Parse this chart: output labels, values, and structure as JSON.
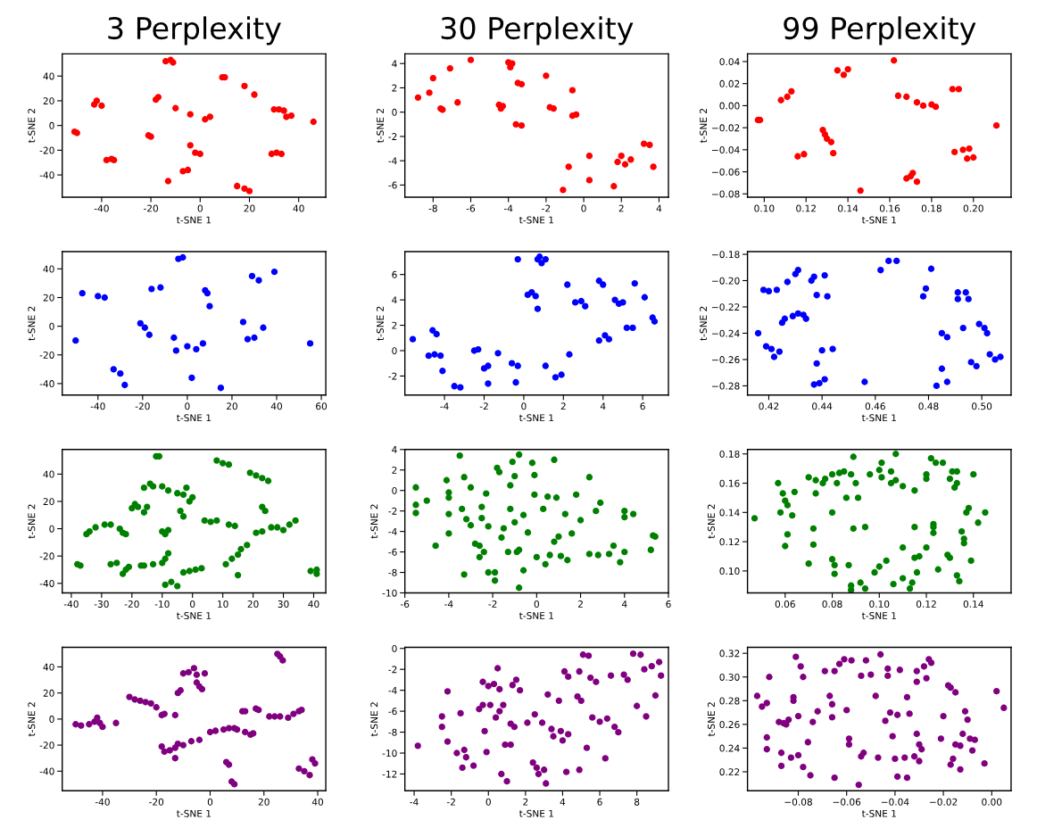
{
  "chart_data": [
    {
      "type": "scatter",
      "title": "3 Perplexity",
      "xlabel": "t-SNE 1",
      "ylabel": "t-SNE 2",
      "marker": "circle",
      "grid": false,
      "xlim": [
        -56,
        51
      ],
      "ylim": [
        -58,
        58
      ],
      "xticks": [
        -40,
        -20,
        0,
        20,
        40
      ],
      "yticks": [
        -40,
        -20,
        0,
        20,
        40
      ],
      "series": [
        {
          "color": "#ff0000",
          "x": [
            -51,
            -50,
            -43,
            -42,
            -40,
            -38,
            -36,
            -35,
            -21,
            -20,
            -18,
            -17,
            -14,
            -12,
            -11,
            -13,
            -10,
            -7,
            -5,
            -4,
            -4,
            -2,
            0,
            2,
            4,
            9,
            10,
            15,
            18,
            20,
            18,
            22,
            29,
            31,
            33,
            30,
            32,
            34,
            35,
            37,
            46
          ],
          "values": [
            -5,
            -6,
            17,
            20,
            16,
            -28,
            -27,
            -28,
            -8,
            -9,
            21,
            23,
            52,
            53,
            51,
            -45,
            14,
            -37,
            -36,
            -16,
            9,
            -22,
            -23,
            5,
            7,
            39,
            39,
            -49,
            -51,
            -53,
            32,
            25,
            -23,
            -22,
            -23,
            13,
            13,
            12,
            7,
            8,
            3
          ]
        }
      ]
    },
    {
      "type": "scatter",
      "title": "30 Perplexity",
      "xlabel": "t-SNE 1",
      "ylabel": "t-SNE 2",
      "marker": "circle",
      "grid": false,
      "xlim": [
        -9.5,
        4.5
      ],
      "ylim": [
        -7,
        4.8
      ],
      "xticks": [
        -8,
        -6,
        -4,
        -2,
        0,
        2,
        4
      ],
      "yticks": [
        -6,
        -4,
        -2,
        0,
        2,
        4
      ],
      "series": [
        {
          "color": "#ff0000",
          "x": [
            -8.8,
            -8.2,
            -8,
            -7.6,
            -7.5,
            -7.1,
            -6.7,
            -6,
            -4.5,
            -4.3,
            -4.4,
            -4,
            -3.8,
            -3.9,
            -3.5,
            -3.3,
            -3.6,
            -3.3,
            -2,
            -1.8,
            -1.6,
            -0.8,
            -0.6,
            -0.6,
            -0.4,
            -1.1,
            0.3,
            0.3,
            1.6,
            1.8,
            2,
            2.2,
            2.5,
            3.2,
            3.5,
            3.7
          ],
          "values": [
            1.2,
            1.6,
            2.8,
            0.3,
            0.2,
            3.6,
            0.8,
            4.3,
            0.6,
            0.5,
            0.3,
            4.1,
            4,
            3.7,
            2.4,
            2.3,
            -1,
            -1.1,
            3,
            0.4,
            0.3,
            -4.5,
            1.8,
            -0.3,
            -0.2,
            -6.4,
            -3.6,
            -5.6,
            -6.1,
            -4.1,
            -3.6,
            -4.3,
            -3.9,
            -2.6,
            -2.7,
            -4.5
          ]
        }
      ]
    },
    {
      "type": "scatter",
      "title": "99 Perplexity",
      "xlabel": "t-SNE 1",
      "ylabel": "t-SNE 2",
      "marker": "circle",
      "grid": false,
      "xlim": [
        0.092,
        0.218
      ],
      "ylim": [
        -0.083,
        0.047
      ],
      "xticks": [
        {
          "value": 0.1,
          "label": "0.10"
        },
        {
          "value": 0.12,
          "label": "0.12"
        },
        {
          "value": 0.14,
          "label": "0.14"
        },
        {
          "value": 0.16,
          "label": "0.16"
        },
        {
          "value": 0.18,
          "label": "0.18"
        },
        {
          "value": 0.2,
          "label": "0.20"
        }
      ],
      "yticks": [
        {
          "value": -0.08,
          "label": "−0.08"
        },
        {
          "value": -0.06,
          "label": "−0.06"
        },
        {
          "value": -0.04,
          "label": "−0.04"
        },
        {
          "value": -0.02,
          "label": "−0.02"
        },
        {
          "value": 0,
          "label": "0.00"
        },
        {
          "value": 0.02,
          "label": "0.02"
        },
        {
          "value": 0.04,
          "label": "0.04"
        }
      ],
      "series": [
        {
          "color": "#ff0000",
          "x": [
            0.097,
            0.098,
            0.108,
            0.111,
            0.113,
            0.116,
            0.119,
            0.128,
            0.129,
            0.13,
            0.132,
            0.133,
            0.135,
            0.138,
            0.14,
            0.146,
            0.162,
            0.164,
            0.168,
            0.17,
            0.168,
            0.171,
            0.173,
            0.173,
            0.176,
            0.18,
            0.182,
            0.19,
            0.193,
            0.191,
            0.195,
            0.198,
            0.197,
            0.2,
            0.211
          ],
          "values": [
            -0.013,
            -0.013,
            0.005,
            0.008,
            0.013,
            -0.046,
            -0.044,
            -0.022,
            -0.026,
            -0.03,
            -0.033,
            -0.043,
            0.032,
            0.028,
            0.033,
            -0.077,
            0.041,
            0.009,
            0.008,
            -0.064,
            -0.066,
            -0.061,
            0.003,
            -0.069,
            0.0,
            0.001,
            -0.001,
            0.015,
            0.015,
            -0.042,
            -0.04,
            -0.039,
            -0.048,
            -0.047,
            -0.018
          ]
        }
      ]
    },
    {
      "type": "scatter",
      "xlabel": "t-SNE 1",
      "ylabel": "t-SNE 2",
      "marker": "circle",
      "grid": false,
      "xlim": [
        -56,
        62
      ],
      "ylim": [
        -48,
        52
      ],
      "xticks": [
        -40,
        -20,
        0,
        20,
        40,
        60
      ],
      "yticks": [
        -40,
        -20,
        0,
        20,
        40
      ],
      "series": [
        {
          "color": "#0000ff",
          "x": [
            -50,
            -47,
            -40,
            -37,
            -33,
            -30,
            -28,
            -21,
            -19,
            -17,
            -16,
            -12,
            -6,
            -5,
            -4,
            -2,
            0,
            2,
            4,
            7,
            8,
            9,
            10,
            15,
            25,
            27,
            29,
            30,
            32,
            34,
            39,
            55
          ],
          "values": [
            -10,
            23,
            21,
            20,
            -30,
            -33,
            -41,
            2,
            -1,
            -6,
            26,
            27,
            -8,
            -17,
            47,
            48,
            -14,
            -36,
            -16,
            -12,
            25,
            23,
            14,
            -43,
            3,
            -9,
            35,
            -8,
            32,
            -1,
            38,
            -12
          ]
        }
      ]
    },
    {
      "type": "scatter",
      "xlabel": "t-SNE 1",
      "ylabel": "t-SNE 2",
      "marker": "circle",
      "grid": false,
      "xlim": [
        -6,
        7.3
      ],
      "ylim": [
        -3.5,
        7.8
      ],
      "xticks": [
        -4,
        -2,
        0,
        2,
        4,
        6
      ],
      "yticks": [
        -2,
        0,
        2,
        4,
        6
      ],
      "series": [
        {
          "color": "#0000ff",
          "x": [
            -5.6,
            -4.8,
            -4.6,
            -4.4,
            -4.5,
            -4.2,
            -4.1,
            -3.5,
            -3.2,
            -2.5,
            -2.3,
            -2,
            -1.8,
            -1.8,
            -1.3,
            -0.6,
            -0.4,
            -0.3,
            -0.3,
            0.2,
            0.4,
            0.6,
            0.7,
            0.8,
            0.9,
            1.1,
            0.7,
            1.1,
            1.6,
            1.9,
            2.2,
            2.3,
            2.6,
            2.9,
            3.1,
            3.8,
            3.8,
            4.0,
            4.1,
            4.3,
            4.6,
            4.8,
            5.0,
            5.2,
            5.5,
            5.6,
            6.1,
            6.5,
            6.6
          ],
          "values": [
            0.9,
            -0.4,
            1.6,
            1.3,
            -0.3,
            -0.4,
            -1.6,
            -2.8,
            -2.9,
            0,
            0.1,
            -1.4,
            -1.2,
            -2.6,
            -0.2,
            -1,
            -2.5,
            -1.2,
            7.2,
            4.4,
            4.6,
            4.3,
            7.2,
            7.4,
            6.9,
            7.2,
            3.3,
            -1.2,
            -2.1,
            -1.9,
            5.2,
            -0.3,
            3.8,
            3.9,
            3.5,
            5.5,
            0.8,
            5.2,
            1.2,
            0.9,
            4.0,
            3.7,
            3.8,
            1.8,
            1.8,
            5.3,
            4.2,
            2.6,
            2.3
          ]
        }
      ]
    },
    {
      "type": "scatter",
      "xlabel": "t-SNE 1",
      "ylabel": "t-SNE 2",
      "marker": "circle",
      "grid": false,
      "xlim": [
        0.412,
        0.511
      ],
      "ylim": [
        -0.287,
        -0.178
      ],
      "xticks": [
        {
          "value": 0.42,
          "label": "0.42"
        },
        {
          "value": 0.44,
          "label": "0.44"
        },
        {
          "value": 0.46,
          "label": "0.46"
        },
        {
          "value": 0.48,
          "label": "0.48"
        },
        {
          "value": 0.5,
          "label": "0.50"
        }
      ],
      "yticks": [
        {
          "value": -0.28,
          "label": "−0.28"
        },
        {
          "value": -0.26,
          "label": "−0.26"
        },
        {
          "value": -0.24,
          "label": "−0.24"
        },
        {
          "value": -0.22,
          "label": "−0.22"
        },
        {
          "value": -0.2,
          "label": "−0.20"
        },
        {
          "value": -0.18,
          "label": "−0.18"
        }
      ],
      "series": [
        {
          "color": "#0000ff",
          "x": [
            0.416,
            0.418,
            0.42,
            0.419,
            0.421,
            0.422,
            0.423,
            0.424,
            0.425,
            0.426,
            0.427,
            0.429,
            0.431,
            0.43,
            0.431,
            0.433,
            0.434,
            0.436,
            0.437,
            0.438,
            0.438,
            0.437,
            0.439,
            0.44,
            0.441,
            0.441,
            0.442,
            0.444,
            0.456,
            0.462,
            0.465,
            0.468,
            0.478,
            0.479,
            0.481,
            0.483,
            0.485,
            0.485,
            0.487,
            0.487,
            0.491,
            0.491,
            0.493,
            0.494,
            0.495,
            0.496,
            0.498,
            0.499,
            0.501,
            0.502,
            0.503,
            0.505,
            0.507
          ],
          "values": [
            -0.24,
            -0.207,
            -0.208,
            -0.25,
            -0.252,
            -0.258,
            -0.207,
            -0.254,
            -0.232,
            -0.229,
            -0.201,
            -0.227,
            -0.225,
            -0.195,
            -0.192,
            -0.226,
            -0.229,
            -0.2,
            -0.197,
            -0.211,
            -0.263,
            -0.279,
            -0.278,
            -0.253,
            -0.196,
            -0.275,
            -0.212,
            -0.252,
            -0.277,
            -0.192,
            -0.185,
            -0.185,
            -0.212,
            -0.206,
            -0.191,
            -0.28,
            -0.267,
            -0.24,
            -0.243,
            -0.277,
            -0.209,
            -0.214,
            -0.236,
            -0.209,
            -0.214,
            -0.262,
            -0.265,
            -0.233,
            -0.236,
            -0.24,
            -0.256,
            -0.26,
            -0.258
          ]
        }
      ]
    },
    {
      "type": "scatter",
      "xlabel": "t-SNE 1",
      "ylabel": "t-SNE 2",
      "marker": "circle",
      "grid": false,
      "xlim": [
        -43,
        44
      ],
      "ylim": [
        -47,
        58
      ],
      "xticks": [
        -40,
        -30,
        -20,
        -10,
        0,
        10,
        20,
        30,
        40
      ],
      "yticks": [
        -40,
        -20,
        0,
        20,
        40
      ],
      "series": [
        {
          "color": "#008000",
          "x": [
            -38,
            -37,
            -35,
            -34,
            -32,
            -29,
            -27,
            -27,
            -25,
            -24,
            -23,
            -22,
            -23,
            -22,
            -21,
            -20,
            -19,
            -18,
            -17,
            -16,
            -16,
            -16,
            -15,
            -14,
            -13,
            -13,
            -12,
            -11,
            -10,
            -9,
            -8,
            -10,
            -9,
            -8,
            -10,
            -8,
            -9,
            -7,
            -5,
            -5,
            -3,
            -4,
            -3,
            -2,
            -1,
            0,
            -3,
            -1,
            1,
            3,
            4,
            6,
            8,
            8,
            10,
            12,
            12,
            14,
            11,
            13,
            15,
            16,
            18,
            15,
            19,
            21,
            23,
            25,
            21,
            23,
            23,
            24,
            26,
            28,
            30,
            32,
            34,
            39,
            41,
            41
          ],
          "values": [
            -26,
            -27,
            -4,
            -2,
            1,
            3,
            3,
            -26,
            -25,
            0,
            -3,
            -4,
            -33,
            -30,
            -28,
            15,
            18,
            16,
            -27,
            -27,
            30,
            12,
            16,
            33,
            -26,
            31,
            53,
            53,
            -2,
            -4,
            -1,
            -25,
            -22,
            -18,
            31,
            28,
            -41,
            -39,
            -42,
            26,
            25,
            13,
            9,
            30,
            20,
            23,
            -32,
            -31,
            -30,
            -29,
            6,
            5,
            6,
            50,
            48,
            47,
            3,
            2,
            -26,
            -22,
            -19,
            -15,
            -12,
            -34,
            41,
            39,
            37,
            35,
            -3,
            -2,
            16,
            13,
            1,
            1,
            -1,
            3,
            6,
            -31,
            -30,
            -33
          ]
        }
      ]
    },
    {
      "type": "scatter",
      "xlabel": "t-SNE 1",
      "ylabel": "t-SNE 2",
      "marker": "circle",
      "grid": false,
      "xlim": [
        -6,
        6
      ],
      "ylim": [
        -10,
        4
      ],
      "xticks": [
        -6,
        -4,
        -2,
        0,
        2,
        4,
        6
      ],
      "yticks": [
        -10,
        -8,
        -6,
        -4,
        -2,
        0,
        2,
        4
      ],
      "series": [
        {
          "color": "#008000",
          "x": [
            -5.5,
            -5.5,
            -5.5,
            -5,
            -4.6,
            -4.1,
            -4,
            -4,
            -4,
            -4,
            -3.5,
            -3.4,
            -3.3,
            -3.2,
            -3.3,
            -3,
            -3,
            -2.8,
            -2.6,
            -2.6,
            -2.5,
            -2.5,
            -2.4,
            -2.3,
            -2.2,
            -2.2,
            -1.9,
            -1.9,
            -1.8,
            -1.7,
            -1.6,
            -1.5,
            -1.3,
            -1.2,
            -1.2,
            -1.1,
            -1,
            -1,
            -0.9,
            -0.8,
            -0.8,
            -0.8,
            -0.6,
            -0.6,
            -0.4,
            -0.2,
            -0.1,
            -0.1,
            0,
            0.3,
            0.4,
            0.5,
            0.6,
            0.8,
            0.8,
            0.9,
            1,
            1.1,
            1.3,
            1.4,
            1.6,
            1.8,
            2,
            2.4,
            2.4,
            2.7,
            2.8,
            2.9,
            3.3,
            3.5,
            3.8,
            4,
            4,
            4,
            4.4,
            5.2,
            5.3,
            5.4
          ],
          "values": [
            0.3,
            -1.4,
            -2.2,
            -1,
            -5.4,
            1,
            -0.2,
            -0.7,
            -2.3,
            -4.2,
            3.4,
            -1.8,
            1.3,
            -2.8,
            -8.2,
            0.3,
            -3.4,
            -5.2,
            -5.4,
            -6.5,
            -1.6,
            -2.7,
            -6,
            -0.3,
            -3.5,
            -8,
            -8,
            -8.8,
            2.2,
            1.8,
            -4.6,
            -3.7,
            -6,
            0.5,
            -1.8,
            2.8,
            1.4,
            -3.1,
            -6,
            -5.8,
            3.5,
            -9.5,
            -2.4,
            -7.8,
            -4.1,
            2.7,
            1.5,
            -0.4,
            -6.5,
            -1.8,
            -7.2,
            -0.6,
            -6.3,
            3,
            -5,
            -0.7,
            -4.5,
            -6.4,
            -2.3,
            -6.8,
            -4.2,
            -0.4,
            -2.9,
            1.3,
            -6.2,
            -2,
            -6.3,
            -1.2,
            -6.2,
            -5.4,
            -7,
            -2,
            -2.6,
            -6,
            -2.3,
            -5.8,
            -4.4,
            -4.5
          ]
        }
      ]
    },
    {
      "type": "scatter",
      "xlabel": "t-SNE 1",
      "ylabel": "t-SNE 2",
      "marker": "circle",
      "grid": false,
      "xlim": [
        0.044,
        0.156
      ],
      "ylim": [
        0.085,
        0.183
      ],
      "xticks": [
        {
          "value": 0.06,
          "label": "0.06"
        },
        {
          "value": 0.08,
          "label": "0.08"
        },
        {
          "value": 0.1,
          "label": "0.10"
        },
        {
          "value": 0.12,
          "label": "0.12"
        },
        {
          "value": 0.14,
          "label": "0.14"
        }
      ],
      "yticks": [
        {
          "value": 0.1,
          "label": "0.10"
        },
        {
          "value": 0.12,
          "label": "0.12"
        },
        {
          "value": 0.14,
          "label": "0.14"
        },
        {
          "value": 0.16,
          "label": "0.16"
        },
        {
          "value": 0.18,
          "label": "0.18"
        }
      ],
      "series": [
        {
          "color": "#008000",
          "x": [
            0.047,
            0.057,
            0.058,
            0.059,
            0.06,
            0.061,
            0.061,
            0.06,
            0.063,
            0.064,
            0.07,
            0.07,
            0.072,
            0.072,
            0.073,
            0.073,
            0.076,
            0.077,
            0.08,
            0.08,
            0.08,
            0.081,
            0.081,
            0.082,
            0.083,
            0.085,
            0.086,
            0.087,
            0.088,
            0.088,
            0.088,
            0.089,
            0.089,
            0.09,
            0.091,
            0.092,
            0.094,
            0.094,
            0.096,
            0.098,
            0.1,
            0.1,
            0.101,
            0.101,
            0.103,
            0.105,
            0.105,
            0.106,
            0.107,
            0.107,
            0.11,
            0.11,
            0.11,
            0.113,
            0.114,
            0.115,
            0.115,
            0.115,
            0.116,
            0.117,
            0.12,
            0.12,
            0.12,
            0.122,
            0.123,
            0.123,
            0.123,
            0.124,
            0.125,
            0.127,
            0.129,
            0.13,
            0.13,
            0.131,
            0.132,
            0.133,
            0.133,
            0.133,
            0.134,
            0.135,
            0.136,
            0.136,
            0.137,
            0.138,
            0.139,
            0.14,
            0.142,
            0.145
          ],
          "values": [
            0.136,
            0.16,
            0.14,
            0.153,
            0.148,
            0.145,
            0.125,
            0.117,
            0.138,
            0.154,
            0.164,
            0.105,
            0.129,
            0.118,
            0.153,
            0.162,
            0.16,
            0.163,
            0.166,
            0.14,
            0.108,
            0.098,
            0.104,
            0.16,
            0.167,
            0.168,
            0.15,
            0.104,
            0.166,
            0.09,
            0.087,
            0.129,
            0.178,
            0.16,
            0.15,
            0.092,
            0.088,
            0.13,
            0.166,
            0.099,
            0.169,
            0.103,
            0.174,
            0.164,
            0.107,
            0.168,
            0.16,
            0.091,
            0.18,
            0.162,
            0.158,
            0.095,
            0.116,
            0.088,
            0.092,
            0.155,
            0.13,
            0.109,
            0.099,
            0.11,
            0.166,
            0.163,
            0.116,
            0.177,
            0.132,
            0.13,
            0.126,
            0.174,
            0.101,
            0.174,
            0.111,
            0.163,
            0.109,
            0.168,
            0.157,
            0.097,
            0.16,
            0.168,
            0.093,
            0.127,
            0.122,
            0.119,
            0.14,
            0.143,
            0.107,
            0.166,
            0.133,
            0.14
          ]
        }
      ]
    },
    {
      "type": "scatter",
      "xlabel": "t-SNE 1",
      "ylabel": "t-SNE 2",
      "marker": "circle",
      "grid": false,
      "xlim": [
        -55,
        43
      ],
      "ylim": [
        -55,
        55
      ],
      "xticks": [
        -40,
        -20,
        0,
        20,
        40
      ],
      "yticks": [
        -40,
        -20,
        0,
        20,
        40
      ],
      "series": [
        {
          "color": "#800080",
          "x": [
            -50,
            -48,
            -45,
            -43,
            -42,
            -41,
            -40,
            -35,
            -30,
            -28,
            -26,
            -24,
            -22,
            -20,
            -18,
            -17,
            -13,
            -12,
            -11,
            -10,
            -8,
            -6,
            -5,
            -5,
            -4,
            -3,
            -2,
            -18,
            -17,
            -15,
            -13,
            -12,
            -13,
            -10,
            -7,
            -4,
            0,
            2,
            5,
            7,
            9,
            10,
            6,
            7,
            8,
            9,
            12,
            13,
            13,
            15,
            16,
            17,
            18,
            22,
            24,
            26,
            29,
            25,
            26,
            27,
            31,
            33,
            34,
            33,
            35,
            37,
            38,
            39
          ],
          "values": [
            -4,
            -5,
            -4,
            -2,
            1,
            -3,
            -6,
            -3,
            17,
            15,
            14,
            13,
            12,
            9,
            3,
            4,
            3,
            20,
            22,
            35,
            36,
            39,
            34,
            28,
            25,
            23,
            35,
            -21,
            -25,
            -24,
            -22,
            -19,
            -30,
            -20,
            -17,
            -16,
            -10,
            -9,
            -8,
            -7,
            -7,
            -8,
            -33,
            -35,
            -48,
            -50,
            6,
            6,
            -10,
            -12,
            -11,
            8,
            7,
            2,
            2,
            2,
            1,
            50,
            48,
            45,
            4,
            6,
            7,
            -38,
            -40,
            -43,
            -31,
            -34
          ]
        }
      ]
    },
    {
      "type": "scatter",
      "xlabel": "t-SNE 1",
      "ylabel": "t-SNE 2",
      "marker": "circle",
      "grid": false,
      "xlim": [
        -4.5,
        9.7
      ],
      "ylim": [
        -13.6,
        0.1
      ],
      "xticks": [
        -4,
        -2,
        0,
        2,
        4,
        6,
        8
      ],
      "yticks": [
        -12,
        -10,
        -8,
        -6,
        -4,
        -2,
        0
      ],
      "series": [
        {
          "color": "#800080",
          "x": [
            -3.8,
            -2.2,
            -2.5,
            -2.5,
            -2.2,
            -1.7,
            -1.5,
            -1.4,
            -1.3,
            -1.2,
            -0.8,
            -0.5,
            -0.3,
            -0.3,
            -0.2,
            -0.1,
            0,
            0.1,
            0.3,
            0.4,
            0.5,
            0.6,
            0.6,
            0.7,
            0.8,
            0.9,
            1,
            1.2,
            1.2,
            1.3,
            1.4,
            1.5,
            1.7,
            2.1,
            2.4,
            2.5,
            2.6,
            2.7,
            2.9,
            3,
            3.1,
            3.2,
            3.4,
            3.5,
            3.8,
            3.9,
            4,
            4.1,
            4.2,
            4.3,
            4.3,
            4.8,
            4.9,
            4.9,
            5,
            5.1,
            5.3,
            5.4,
            5.5,
            5.6,
            5.8,
            6,
            6.3,
            6.4,
            6.6,
            6.8,
            7,
            7.3,
            7.5,
            7.8,
            8,
            8.2,
            8.4,
            8.5,
            8.8,
            9,
            9.2,
            9.3
          ],
          "values": [
            -9.3,
            -4.1,
            -6.5,
            -7.5,
            -8.9,
            -10,
            -6.2,
            -11.4,
            -9.7,
            -10.4,
            -11.2,
            -5.8,
            -3.2,
            -5.4,
            -7.9,
            -9.9,
            -3.6,
            -5.4,
            -3.4,
            -6.6,
            -1.9,
            -3.9,
            -6,
            -12,
            -5.4,
            -9.2,
            -12.7,
            -9.2,
            -7.2,
            -3.5,
            -7.5,
            -3,
            -4,
            -7.1,
            -10.9,
            -6.3,
            -11.4,
            -12,
            -7.1,
            -11.6,
            -12.9,
            -4.4,
            -7.7,
            -8.4,
            -5,
            -7.9,
            -8.8,
            -2.2,
            -11.8,
            -2.7,
            -8.2,
            -4.6,
            -11.6,
            -2.2,
            -5,
            -0.6,
            -9.5,
            -0.7,
            -2.8,
            -6.6,
            -3.2,
            -7,
            -10.5,
            -6.7,
            -2.6,
            -7.5,
            -8,
            -2.5,
            -3,
            -0.5,
            -5.5,
            -0.6,
            -2,
            -6.5,
            -1.7,
            -4.5,
            -1.3,
            -2.6
          ]
        }
      ]
    },
    {
      "type": "scatter",
      "xlabel": "t-SNE 1",
      "ylabel": "t-SNE 2",
      "marker": "circle",
      "grid": false,
      "xlim": [
        -0.101,
        0.008
      ],
      "ylim": [
        0.204,
        0.325
      ],
      "xticks": [
        {
          "value": -0.08,
          "label": "−0.08"
        },
        {
          "value": -0.06,
          "label": "−0.06"
        },
        {
          "value": -0.04,
          "label": "−0.04"
        },
        {
          "value": -0.02,
          "label": "−0.02"
        },
        {
          "value": 0,
          "label": "0.00"
        }
      ],
      "yticks": [
        {
          "value": 0.22,
          "label": "0.22"
        },
        {
          "value": 0.24,
          "label": "0.24"
        },
        {
          "value": 0.26,
          "label": "0.26"
        },
        {
          "value": 0.28,
          "label": "0.28"
        },
        {
          "value": 0.3,
          "label": "0.30"
        },
        {
          "value": 0.32,
          "label": "0.32"
        }
      ],
      "series": [
        {
          "color": "#800080",
          "x": [
            -0.097,
            -0.095,
            -0.093,
            -0.093,
            -0.093,
            -0.092,
            -0.088,
            -0.087,
            -0.087,
            -0.086,
            -0.085,
            -0.084,
            -0.083,
            -0.082,
            -0.082,
            -0.081,
            -0.08,
            -0.08,
            -0.079,
            -0.078,
            -0.078,
            -0.076,
            -0.075,
            -0.074,
            -0.072,
            -0.069,
            -0.067,
            -0.066,
            -0.066,
            -0.065,
            -0.065,
            -0.063,
            -0.061,
            -0.06,
            -0.059,
            -0.059,
            -0.058,
            -0.055,
            -0.054,
            -0.054,
            -0.053,
            -0.052,
            -0.05,
            -0.048,
            -0.047,
            -0.046,
            -0.044,
            -0.043,
            -0.043,
            -0.042,
            -0.041,
            -0.04,
            -0.039,
            -0.039,
            -0.038,
            -0.036,
            -0.035,
            -0.035,
            -0.034,
            -0.032,
            -0.031,
            -0.031,
            -0.031,
            -0.03,
            -0.03,
            -0.029,
            -0.028,
            -0.027,
            -0.026,
            -0.025,
            -0.021,
            -0.02,
            -0.018,
            -0.017,
            -0.017,
            -0.016,
            -0.015,
            -0.015,
            -0.013,
            -0.013,
            -0.012,
            -0.011,
            -0.01,
            -0.009,
            -0.008,
            -0.007,
            -0.003,
            0.002,
            0.005
          ],
          "values": [
            0.284,
            0.275,
            0.278,
            0.239,
            0.249,
            0.3,
            0.262,
            0.236,
            0.225,
            0.261,
            0.26,
            0.264,
            0.232,
            0.283,
            0.28,
            0.317,
            0.267,
            0.234,
            0.309,
            0.224,
            0.3,
            0.245,
            0.217,
            0.262,
            0.271,
            0.305,
            0.284,
            0.277,
            0.266,
            0.215,
            0.305,
            0.311,
            0.315,
            0.272,
            0.243,
            0.248,
            0.314,
            0.209,
            0.301,
            0.233,
            0.236,
            0.314,
            0.302,
            0.284,
            0.232,
            0.319,
            0.263,
            0.307,
            0.301,
            0.27,
            0.25,
            0.231,
            0.216,
            0.268,
            0.306,
            0.232,
            0.215,
            0.283,
            0.269,
            0.233,
            0.305,
            0.296,
            0.252,
            0.243,
            0.229,
            0.239,
            0.309,
            0.299,
            0.315,
            0.312,
            0.248,
            0.267,
            0.293,
            0.291,
            0.226,
            0.231,
            0.287,
            0.243,
            0.242,
            0.222,
            0.252,
            0.271,
            0.264,
            0.248,
            0.238,
            0.247,
            0.227,
            0.288,
            0.274
          ]
        }
      ]
    }
  ]
}
